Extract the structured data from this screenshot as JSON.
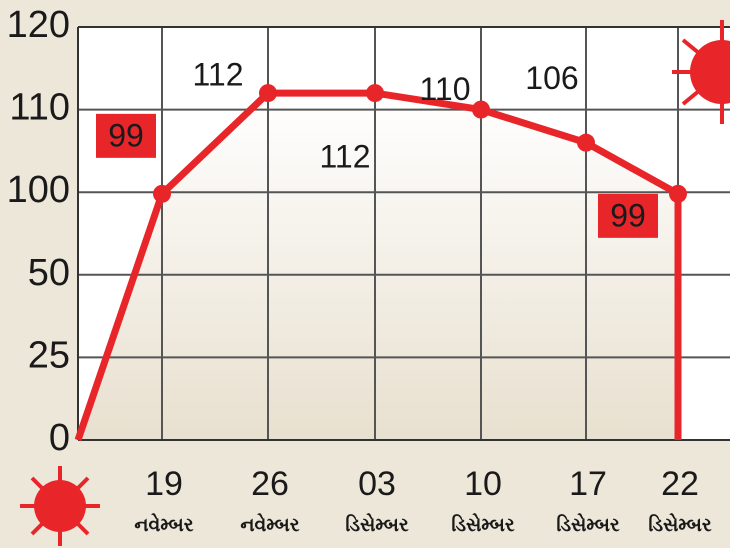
{
  "chart_data": {
    "type": "line",
    "categories": [
      null,
      "19",
      "26",
      "03",
      "10",
      "17",
      "22"
    ],
    "months": [
      null,
      "નવેમ્બર",
      "નવેમ્બર",
      "ડિસેમ્બર",
      "ડિસેમ્બર",
      "ડિસેમ્બર",
      "ડિસેમ્બર"
    ],
    "values": [
      0,
      99,
      112,
      112,
      110,
      106,
      99
    ],
    "color": "#e8262a",
    "ylim": [
      0,
      120
    ],
    "yticks": [
      0,
      25,
      50,
      100,
      110,
      120
    ],
    "grid": true
  }
}
